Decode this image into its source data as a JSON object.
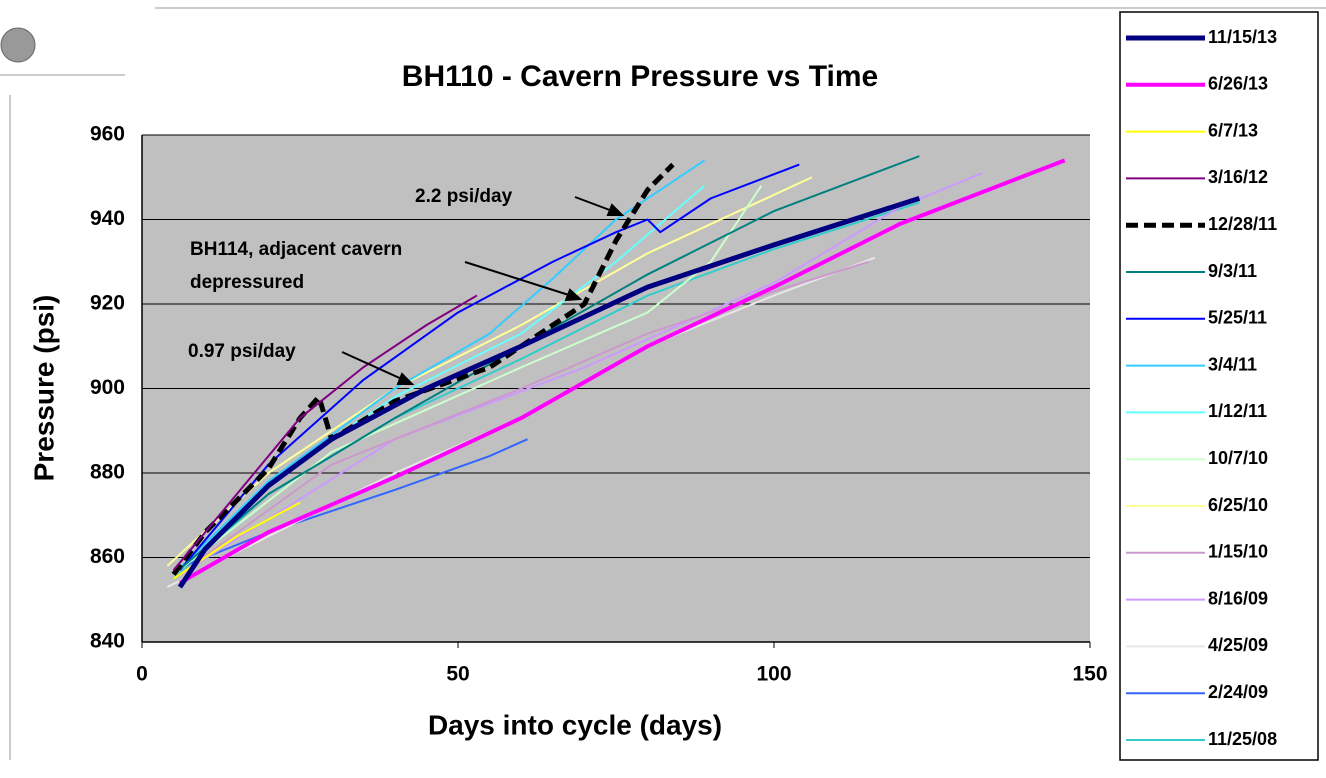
{
  "chart_data": {
    "type": "line",
    "title": "BH110 - Cavern Pressure vs Time",
    "xlabel": "Days into cycle (days)",
    "ylabel": "Pressure (psi)",
    "xlim": [
      0,
      150
    ],
    "xticks": [
      0,
      50,
      100,
      150
    ],
    "ylim": [
      840,
      960
    ],
    "yticks": [
      840,
      860,
      880,
      900,
      920,
      940,
      960
    ],
    "grid": true,
    "legend": "right",
    "annotations": [
      {
        "lines": [
          "2.2 psi/day"
        ]
      },
      {
        "lines": [
          "BH114, adjacent cavern",
          "depressured"
        ]
      },
      {
        "lines": [
          "0.97 psi/day"
        ]
      }
    ],
    "series": [
      {
        "name": "11/15/13",
        "color": "#000080",
        "width": 5,
        "x": [
          6,
          10,
          20,
          30,
          45,
          60,
          80,
          100,
          123
        ],
        "values": [
          853,
          862,
          877,
          888,
          900,
          910,
          924,
          934,
          945
        ]
      },
      {
        "name": "6/26/13",
        "color": "#ff00ff",
        "width": 4,
        "x": [
          6,
          20,
          40,
          60,
          80,
          100,
          120,
          146
        ],
        "values": [
          854,
          866,
          879,
          893,
          910,
          924,
          939,
          954
        ]
      },
      {
        "name": "6/7/13",
        "color": "#ffff00",
        "width": 2,
        "x": [
          5,
          15,
          25
        ],
        "values": [
          855,
          865,
          873
        ]
      },
      {
        "name": "3/16/12",
        "color": "#800080",
        "width": 2,
        "x": [
          5,
          15,
          25,
          35,
          45,
          53
        ],
        "values": [
          857,
          875,
          893,
          905,
          915,
          922
        ]
      },
      {
        "name": "12/28/11",
        "color": "#000000",
        "width": 5,
        "dashed": true,
        "x": [
          5,
          10,
          20,
          25,
          28,
          30,
          40,
          55,
          70,
          75,
          80,
          84
        ],
        "values": [
          856,
          866,
          881,
          893,
          898,
          888,
          897,
          905,
          920,
          935,
          947,
          953
        ]
      },
      {
        "name": "9/3/11",
        "color": "#008080",
        "width": 2,
        "x": [
          5,
          20,
          40,
          60,
          80,
          100,
          123
        ],
        "values": [
          856,
          875,
          893,
          910,
          927,
          942,
          955
        ]
      },
      {
        "name": "5/25/11",
        "color": "#0000ff",
        "width": 2,
        "x": [
          6,
          20,
          35,
          50,
          65,
          75,
          80,
          82,
          90,
          104
        ],
        "values": [
          857,
          882,
          902,
          918,
          930,
          937,
          940,
          937,
          945,
          953
        ]
      },
      {
        "name": "3/4/11",
        "color": "#33ccff",
        "width": 2,
        "x": [
          5,
          20,
          40,
          55,
          65,
          75,
          89
        ],
        "values": [
          856,
          878,
          900,
          913,
          926,
          940,
          954
        ]
      },
      {
        "name": "1/12/11",
        "color": "#66ffff",
        "width": 2,
        "x": [
          5,
          20,
          40,
          60,
          75,
          89
        ],
        "values": [
          856,
          878,
          898,
          913,
          930,
          948
        ]
      },
      {
        "name": "10/7/10",
        "color": "#ccffcc",
        "width": 2,
        "x": [
          5,
          30,
          60,
          80,
          90,
          98
        ],
        "values": [
          856,
          885,
          905,
          918,
          930,
          948
        ]
      },
      {
        "name": "6/25/10",
        "color": "#ffff99",
        "width": 2,
        "x": [
          4,
          20,
          40,
          60,
          80,
          106
        ],
        "values": [
          858,
          880,
          900,
          915,
          932,
          950
        ]
      },
      {
        "name": "1/15/10",
        "color": "#cc99cc",
        "width": 2,
        "x": [
          5,
          30,
          60,
          80,
          100,
          115
        ],
        "values": [
          855,
          882,
          900,
          913,
          923,
          930
        ]
      },
      {
        "name": "8/16/09",
        "color": "#cc99ff",
        "width": 2,
        "x": [
          5,
          40,
          70,
          100,
          120,
          133
        ],
        "values": [
          855,
          888,
          905,
          925,
          943,
          951
        ]
      },
      {
        "name": "4/25/09",
        "color": "#e6e6e6",
        "width": 2,
        "x": [
          4,
          20,
          40,
          60,
          80,
          100,
          116
        ],
        "values": [
          853,
          865,
          880,
          893,
          910,
          922,
          931
        ]
      },
      {
        "name": "2/24/09",
        "color": "#3366ff",
        "width": 2,
        "x": [
          5,
          20,
          40,
          55,
          61
        ],
        "values": [
          857,
          866,
          876,
          884,
          888
        ]
      },
      {
        "name": "11/25/08",
        "color": "#33cccc",
        "width": 2,
        "x": [
          5,
          20,
          40,
          60,
          80,
          100,
          123
        ],
        "values": [
          855,
          875,
          893,
          907,
          922,
          933,
          944
        ]
      }
    ]
  }
}
